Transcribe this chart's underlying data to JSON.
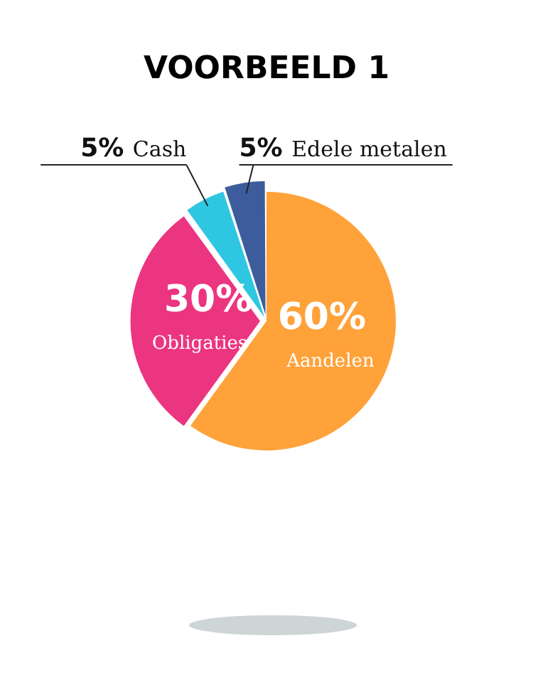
{
  "chart_data": {
    "type": "pie",
    "title": "VOORBEELD 1",
    "categories": [
      "Aandelen",
      "Obligaties",
      "Cash",
      "Edele metalen"
    ],
    "values": [
      60,
      30,
      5,
      5
    ],
    "value_labels": [
      "60%",
      "30%",
      "5%",
      "5%"
    ],
    "colors": [
      "#ffa23a",
      "#ec3580",
      "#2fc6e2",
      "#3d5c9c"
    ],
    "legend": false
  }
}
